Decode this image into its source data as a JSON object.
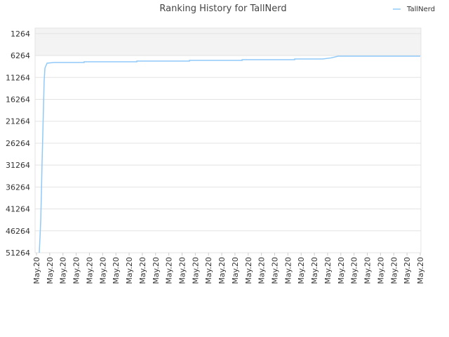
{
  "chart_data": {
    "type": "line",
    "title": "Ranking History for TallNerd",
    "x": [
      0.21,
      0.27,
      0.32,
      0.37,
      0.42,
      0.48,
      0.53,
      0.58,
      0.64,
      0.8,
      1.33,
      3.6,
      3.6,
      7.58,
      7.58,
      11.56,
      11.56,
      15.54,
      15.54,
      19.51,
      19.51,
      21.63,
      22.27,
      22.8,
      29
    ],
    "series": [
      {
        "name": "TallNerd",
        "color": "#90caf9",
        "values": [
          51264,
          47500,
          44000,
          38000,
          31000,
          24000,
          18000,
          12000,
          9130,
          8010,
          7850,
          7850,
          7690,
          7690,
          7530,
          7530,
          7370,
          7370,
          7210,
          7210,
          7050,
          7050,
          6800,
          6408,
          6408
        ]
      }
    ],
    "xlim": [
      0,
      29
    ],
    "xticks": [
      {
        "value": 0,
        "label": "May.20"
      },
      {
        "value": 1,
        "label": "May.20"
      },
      {
        "value": 2,
        "label": "May.20"
      },
      {
        "value": 3,
        "label": "May.20"
      },
      {
        "value": 4,
        "label": "May.20"
      },
      {
        "value": 5,
        "label": "May.20"
      },
      {
        "value": 6,
        "label": "May.20"
      },
      {
        "value": 7,
        "label": "May.20"
      },
      {
        "value": 8,
        "label": "May.20"
      },
      {
        "value": 9,
        "label": "May.20"
      },
      {
        "value": 10,
        "label": "May.20"
      },
      {
        "value": 11,
        "label": "May.20"
      },
      {
        "value": 12,
        "label": "May.20"
      },
      {
        "value": 13,
        "label": "May.20"
      },
      {
        "value": 14,
        "label": "May.20"
      },
      {
        "value": 15,
        "label": "May.20"
      },
      {
        "value": 16,
        "label": "May.20"
      },
      {
        "value": 17,
        "label": "May.20"
      },
      {
        "value": 18,
        "label": "May.20"
      },
      {
        "value": 19,
        "label": "May.20"
      },
      {
        "value": 20,
        "label": "May.20"
      },
      {
        "value": 21,
        "label": "May.20"
      },
      {
        "value": 22,
        "label": "May.20"
      },
      {
        "value": 23,
        "label": "May.20"
      },
      {
        "value": 24,
        "label": "May.20"
      },
      {
        "value": 25,
        "label": "May.20"
      },
      {
        "value": 26,
        "label": "May.20"
      },
      {
        "value": 27,
        "label": "May.20"
      },
      {
        "value": 28,
        "label": "May.20"
      },
      {
        "value": 29,
        "label": "May.20"
      }
    ],
    "ylim": [
      51264,
      0
    ],
    "yticks": [
      1264,
      6264,
      11264,
      16264,
      21264,
      26264,
      31264,
      36264,
      41264,
      46264,
      51264
    ],
    "grid": true,
    "legend": "top-right"
  }
}
